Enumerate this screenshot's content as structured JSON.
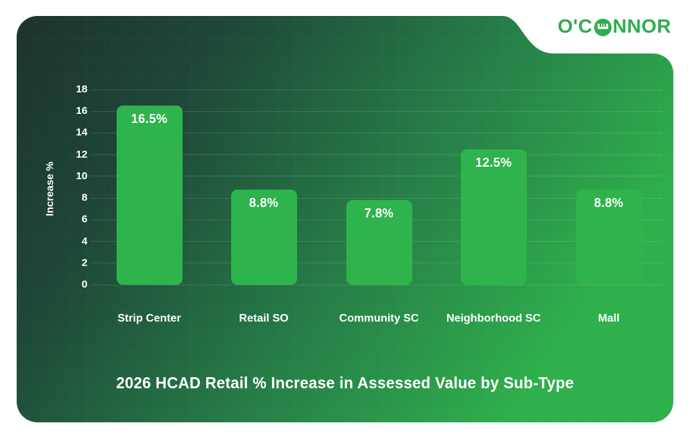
{
  "logo": {
    "text_before": "O'C",
    "text_after": "NNOR",
    "full_name": "O'CONNOR",
    "color": "#2fae4d"
  },
  "chart_data": {
    "type": "bar",
    "categories": [
      "Strip Center",
      "Retail SO",
      "Community SC",
      "Neighborhood SC",
      "Mall"
    ],
    "values": [
      16.5,
      8.8,
      7.8,
      12.5,
      8.8
    ],
    "value_labels": [
      "16.5%",
      "8.8%",
      "7.8%",
      "12.5%",
      "8.8%"
    ],
    "title": "2026 HCAD Retail % Increase in Assessed Value by Sub-Type",
    "xlabel": "",
    "ylabel": "Increase %",
    "ylim": [
      0,
      18
    ],
    "yticks": [
      0,
      2,
      4,
      6,
      8,
      10,
      12,
      14,
      16,
      18
    ],
    "grid": true,
    "legend": "none",
    "bar_color": "#2fb34c",
    "label_color": "#ffffff"
  },
  "card": {
    "gradient_stops": [
      "#1c332e",
      "#1e4737",
      "#257746",
      "#2fb04c"
    ]
  }
}
